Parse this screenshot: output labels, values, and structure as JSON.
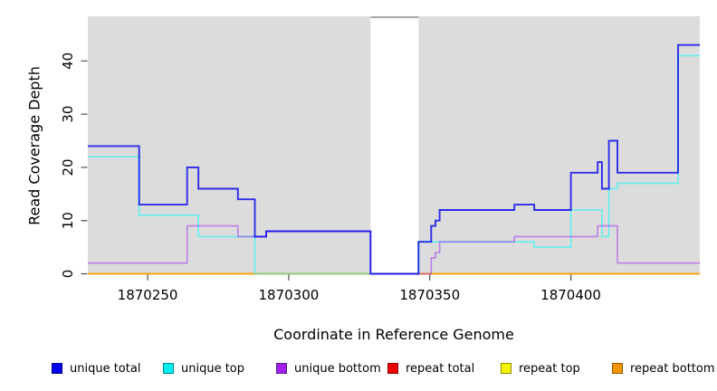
{
  "chart_data": {
    "type": "line",
    "step": true,
    "title": "",
    "xlabel": "Coordinate in Reference Genome",
    "ylabel": "Read Coverage Depth",
    "xlim": [
      1870228.8,
      1870445.7
    ],
    "ylim": [
      0,
      48.4
    ],
    "x_ticks": [
      1870250,
      1870300,
      1870350,
      1870400
    ],
    "x_tick_labels": [
      "1870250",
      "1870300",
      "1870350",
      "1870400"
    ],
    "y_ticks": [
      0,
      10,
      20,
      30,
      40
    ],
    "y_tick_labels": [
      "0",
      "10",
      "20",
      "30",
      "40"
    ],
    "grid": false,
    "plot_background": "#DCDCDC",
    "gap_region": {
      "from": 1870329,
      "to": 1870346,
      "fill": "#FFFFFF",
      "top_border": "#8A8A8A"
    },
    "series": [
      {
        "name": "repeat total",
        "color": "#EE0000",
        "opacity": 1,
        "width": 1.4,
        "points": [
          [
            1870228.8,
            0
          ]
        ]
      },
      {
        "name": "repeat top",
        "color": "#F5F500",
        "opacity": 1,
        "width": 1.4,
        "points": [
          [
            1870228.8,
            0
          ]
        ]
      },
      {
        "name": "repeat bottom",
        "color": "#FF9D00",
        "opacity": 1,
        "width": 1.6,
        "points": [
          [
            1870228.8,
            0
          ]
        ]
      },
      {
        "name": "unique top",
        "color": "#00FFFF",
        "opacity": 0.55,
        "width": 1.6,
        "points": [
          [
            1870228.8,
            22
          ],
          [
            1870247,
            11
          ],
          [
            1870268,
            7
          ],
          [
            1870288,
            0
          ],
          [
            1870346,
            6
          ],
          [
            1870387,
            5
          ],
          [
            1870400,
            12
          ],
          [
            1870411,
            7
          ],
          [
            1870413.5,
            16
          ],
          [
            1870416.5,
            17
          ],
          [
            1870438,
            41
          ]
        ]
      },
      {
        "name": "unique bottom",
        "color": "#A020F0",
        "opacity": 0.5,
        "width": 1.6,
        "points": [
          [
            1870228.8,
            2
          ],
          [
            1870264,
            9
          ],
          [
            1870282,
            7
          ],
          [
            1870292,
            8
          ],
          [
            1870329,
            0
          ],
          [
            1870350.5,
            3
          ],
          [
            1870352,
            4
          ],
          [
            1870353.5,
            6
          ],
          [
            1870380,
            7
          ],
          [
            1870409.5,
            9
          ],
          [
            1870416.5,
            2
          ]
        ]
      },
      {
        "name": "unique total",
        "color": "#0000EE",
        "opacity": 0.8,
        "width": 1.9,
        "points": [
          [
            1870228.8,
            24
          ],
          [
            1870247,
            13
          ],
          [
            1870264,
            20
          ],
          [
            1870268,
            16
          ],
          [
            1870282,
            14
          ],
          [
            1870288,
            7
          ],
          [
            1870292,
            8
          ],
          [
            1870329,
            0
          ],
          [
            1870346,
            6
          ],
          [
            1870350.5,
            9
          ],
          [
            1870352,
            10
          ],
          [
            1870353.5,
            12
          ],
          [
            1870380,
            13
          ],
          [
            1870387,
            12
          ],
          [
            1870400,
            19
          ],
          [
            1870409.5,
            21
          ],
          [
            1870411,
            16
          ],
          [
            1870413.5,
            25
          ],
          [
            1870416.5,
            19
          ],
          [
            1870438,
            43
          ]
        ]
      }
    ],
    "legend": [
      {
        "label": "unique total",
        "fill": "#0000EE",
        "border": "#00008B"
      },
      {
        "label": "unique top",
        "fill": "#00EEEE",
        "border": "#008B8B"
      },
      {
        "label": "unique bottom",
        "fill": "#A020F0",
        "border": "#551A8B"
      },
      {
        "label": "repeat total",
        "fill": "#EE0000",
        "border": "#8B0000"
      },
      {
        "label": "repeat top",
        "fill": "#F5F500",
        "border": "#8B8B00"
      },
      {
        "label": "repeat bottom",
        "fill": "#F59300",
        "border": "#8B5A00"
      }
    ],
    "legend_position": "bottom"
  }
}
